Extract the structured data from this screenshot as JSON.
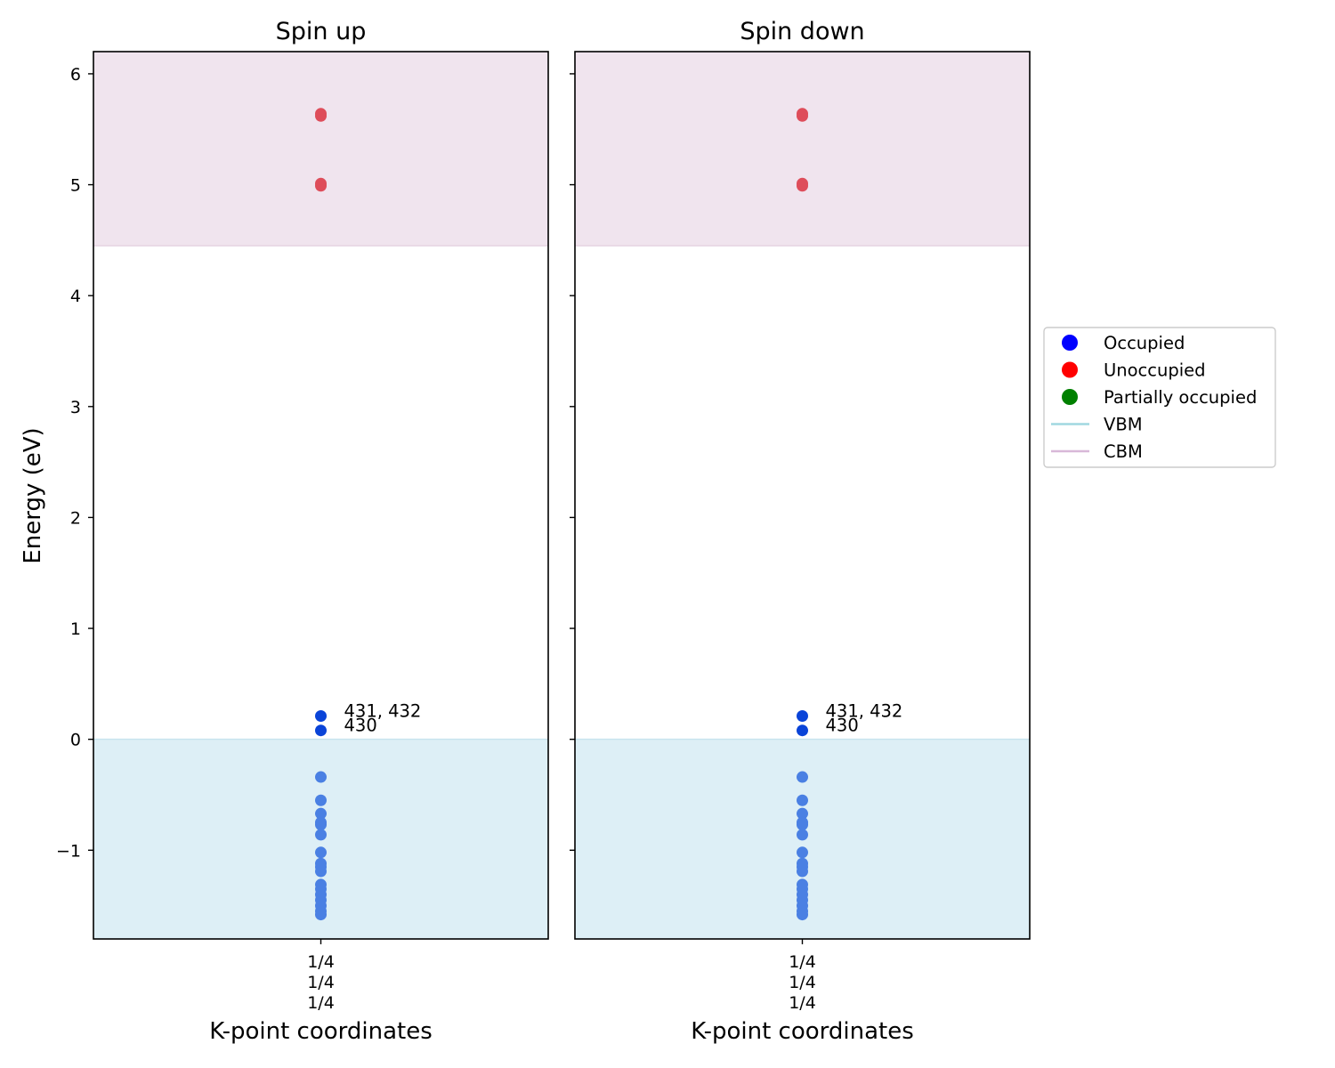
{
  "chart_data": {
    "type": "scatter",
    "ylabel": "Energy (eV)",
    "ylim": [
      -1.8,
      6.2
    ],
    "yticks": [
      -1,
      0,
      1,
      2,
      3,
      4,
      5,
      6
    ],
    "ytick_labels": [
      "−1",
      "0",
      "1",
      "2",
      "3",
      "4",
      "5",
      "6"
    ],
    "vbm": 0.0,
    "cbm": 4.45,
    "legend": {
      "placement": "center-right outside",
      "entries": [
        {
          "label": "Occupied",
          "kind": "marker",
          "color": "#0000ff"
        },
        {
          "label": "Unoccupied",
          "kind": "marker",
          "color": "#ff0000"
        },
        {
          "label": "Partially occupied",
          "kind": "marker",
          "color": "#008000"
        },
        {
          "label": "VBM",
          "kind": "line",
          "color": "#a0d8e0"
        },
        {
          "label": "CBM",
          "kind": "line",
          "color": "#d8b8d8"
        }
      ]
    },
    "colors": {
      "vbm_fill": "#ddeff6",
      "cbm_fill": "#f0e4ee",
      "occupied_bulk": "#4a80e3",
      "occupied_highlight": "#0a44d8",
      "unoccupied": "#de4d5a"
    },
    "panels": [
      {
        "title": "Spin up",
        "xlabel": "K-point coordinates",
        "xtick_lines": [
          "1/4",
          "1/4",
          "1/4"
        ],
        "occupied": [
          -1.58,
          -1.55,
          -1.5,
          -1.45,
          -1.4,
          -1.35,
          -1.31,
          -1.19,
          -1.15,
          -1.12,
          -1.02,
          -0.86,
          -0.77,
          -0.75,
          -0.67,
          -0.55,
          -0.34
        ],
        "occupied_highlight": [
          0.08,
          0.21
        ],
        "unoccupied": [
          4.99,
          5.01,
          5.62,
          5.64
        ],
        "annotations": [
          {
            "text": "431, 432",
            "y": 0.21
          },
          {
            "text": "430",
            "y": 0.08
          }
        ]
      },
      {
        "title": "Spin down",
        "xlabel": "K-point coordinates",
        "xtick_lines": [
          "1/4",
          "1/4",
          "1/4"
        ],
        "occupied": [
          -1.58,
          -1.55,
          -1.5,
          -1.45,
          -1.4,
          -1.35,
          -1.31,
          -1.19,
          -1.15,
          -1.12,
          -1.02,
          -0.86,
          -0.77,
          -0.75,
          -0.67,
          -0.55,
          -0.34
        ],
        "occupied_highlight": [
          0.08,
          0.21
        ],
        "unoccupied": [
          4.99,
          5.01,
          5.62,
          5.64
        ],
        "annotations": [
          {
            "text": "431, 432",
            "y": 0.21
          },
          {
            "text": "430",
            "y": 0.08
          }
        ]
      }
    ]
  }
}
